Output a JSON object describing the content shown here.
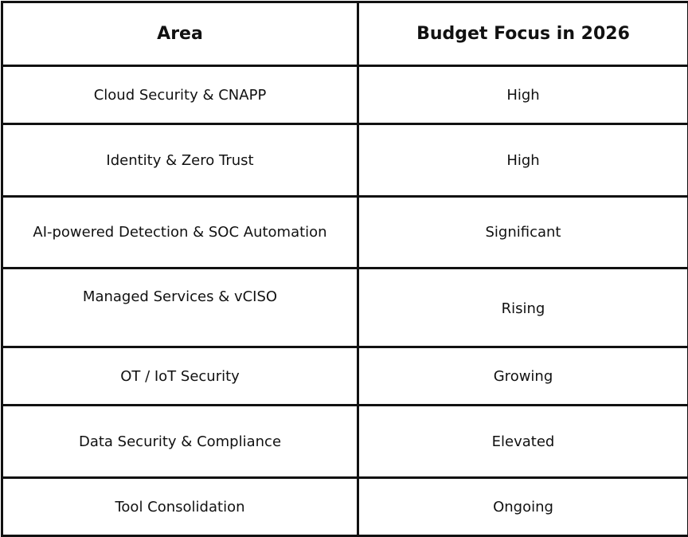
{
  "table": {
    "headers": [
      "Area",
      "Budget Focus in 2026"
    ],
    "rows": [
      {
        "area": "Cloud Security & CNAPP",
        "focus": "High"
      },
      {
        "area": "Identity & Zero Trust",
        "focus": "High"
      },
      {
        "area": "AI-powered Detection & SOC Automation",
        "focus": "Significant"
      },
      {
        "area": "Managed Services & vCISO",
        "focus": "Rising"
      },
      {
        "area": "OT / IoT Security",
        "focus": "Growing"
      },
      {
        "area": "Data Security & Compliance",
        "focus": "Elevated"
      },
      {
        "area": "Tool Consolidation",
        "focus": "Ongoing"
      }
    ]
  }
}
